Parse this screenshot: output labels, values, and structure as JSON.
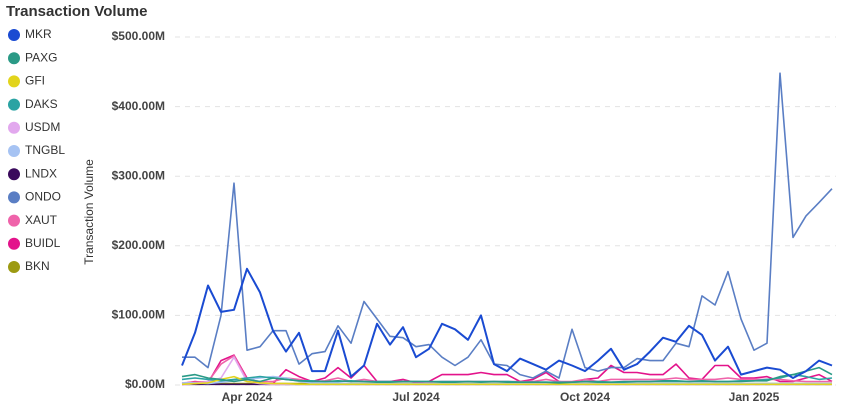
{
  "chart_data": {
    "type": "line",
    "title": "Transaction Volume",
    "y_label": "Transaction Volume",
    "categories": [
      null,
      null,
      null,
      null,
      null,
      "Apr 2024",
      null,
      null,
      null,
      null,
      null,
      null,
      null,
      null,
      null,
      null,
      null,
      null,
      "Jul 2024",
      null,
      null,
      null,
      null,
      null,
      null,
      null,
      null,
      null,
      null,
      null,
      null,
      "Oct 2024",
      null,
      null,
      null,
      null,
      null,
      null,
      null,
      null,
      null,
      null,
      null,
      null,
      "Jan 2025",
      null,
      null,
      null,
      null,
      null,
      null
    ],
    "ylim": [
      0,
      500
    ],
    "yticks": [
      {
        "value": 0,
        "label": "$0.00M"
      },
      {
        "value": 100,
        "label": "$100.00M"
      },
      {
        "value": 200,
        "label": "$200.00M"
      },
      {
        "value": 300,
        "label": "$300.00M"
      },
      {
        "value": 400,
        "label": "$400.00M"
      },
      {
        "value": 500,
        "label": "$500.00M"
      }
    ],
    "grid": true,
    "legend": "left",
    "series": [
      {
        "name": "MKR",
        "color": "#1a4bd2",
        "values": [
          28,
          75,
          143,
          105,
          108,
          167,
          133,
          78,
          48,
          75,
          20,
          20,
          78,
          12,
          28,
          88,
          58,
          83,
          40,
          52,
          88,
          80,
          65,
          100,
          30,
          20,
          38,
          30,
          22,
          35,
          28,
          20,
          35,
          52,
          22,
          30,
          48,
          68,
          62,
          85,
          72,
          35,
          55,
          15,
          20,
          25,
          22,
          10,
          20,
          35,
          28
        ]
      },
      {
        "name": "PAXG",
        "color": "#2a9a86",
        "values": [
          12,
          15,
          10,
          8,
          5,
          8,
          5,
          10,
          8,
          6,
          5,
          5,
          6,
          5,
          5,
          4,
          4,
          5,
          5,
          5,
          4,
          4,
          5,
          4,
          5,
          4,
          4,
          4,
          4,
          3,
          4,
          5,
          4,
          4,
          5,
          5,
          5,
          6,
          6,
          5,
          6,
          5,
          5,
          5,
          6,
          6,
          12,
          15,
          20,
          25,
          15
        ]
      },
      {
        "name": "GFI",
        "color": "#e2d41c",
        "values": [
          1,
          2,
          3,
          8,
          12,
          5,
          3,
          2,
          2,
          1,
          1,
          1,
          1,
          1,
          1,
          1,
          1,
          1,
          1,
          1,
          1,
          1,
          1,
          1,
          1,
          1,
          1,
          1,
          1,
          1,
          1,
          1,
          1,
          1,
          1,
          1,
          1,
          1,
          1,
          1,
          1,
          1,
          1,
          1,
          1,
          1,
          1,
          1,
          1,
          1,
          1
        ]
      },
      {
        "name": "DAKS",
        "color": "#2ba3a3",
        "values": [
          8,
          10,
          8,
          6,
          8,
          10,
          12,
          10,
          8,
          6,
          6,
          5,
          5,
          6,
          5,
          5,
          5,
          5,
          5,
          5,
          5,
          5,
          5,
          5,
          5,
          5,
          4,
          4,
          4,
          4,
          4,
          5,
          5,
          4,
          4,
          5,
          5,
          5,
          5,
          5,
          5,
          5,
          5,
          6,
          6,
          8,
          10,
          15,
          12,
          8,
          10
        ]
      },
      {
        "name": "USDM",
        "color": "#e2a8ee",
        "values": [
          0,
          2,
          5,
          10,
          40,
          5,
          2,
          1,
          1,
          1,
          1,
          1,
          1,
          1,
          1,
          1,
          1,
          1,
          1,
          1,
          1,
          1,
          1,
          1,
          1,
          1,
          1,
          1,
          1,
          1,
          1,
          1,
          1,
          1,
          1,
          1,
          1,
          1,
          1,
          1,
          1,
          1,
          1,
          1,
          1,
          1,
          1,
          1,
          1,
          1,
          1
        ]
      },
      {
        "name": "TNGBL",
        "color": "#a6c3f3",
        "values": [
          3,
          3,
          2,
          4,
          6,
          8,
          10,
          12,
          10,
          5,
          3,
          3,
          3,
          2,
          2,
          2,
          2,
          2,
          2,
          2,
          2,
          2,
          2,
          2,
          2,
          2,
          2,
          2,
          2,
          2,
          2,
          2,
          2,
          2,
          2,
          2,
          2,
          2,
          2,
          2,
          2,
          2,
          2,
          2,
          2,
          2,
          2,
          2,
          2,
          2,
          2
        ]
      },
      {
        "name": "LNDX",
        "color": "#3a0a5c",
        "values": [
          1,
          1,
          1,
          1,
          1,
          1,
          1,
          1,
          1,
          1,
          1,
          1,
          1,
          1,
          1,
          1,
          1,
          1,
          1,
          1,
          1,
          1,
          1,
          1,
          1,
          1,
          1,
          1,
          1,
          1,
          1,
          1,
          1,
          1,
          1,
          1,
          1,
          1,
          1,
          1,
          1,
          1,
          1,
          1,
          1,
          1,
          1,
          1,
          1,
          1,
          1
        ]
      },
      {
        "name": "ONDO",
        "color": "#5a7ec4",
        "values": [
          40,
          40,
          25,
          100,
          290,
          50,
          55,
          78,
          78,
          30,
          45,
          48,
          85,
          60,
          120,
          95,
          70,
          68,
          55,
          58,
          40,
          28,
          40,
          65,
          30,
          28,
          15,
          10,
          20,
          10,
          80,
          25,
          20,
          25,
          25,
          38,
          35,
          35,
          60,
          55,
          128,
          115,
          163,
          95,
          50,
          60,
          448,
          212,
          243,
          262,
          282
        ]
      },
      {
        "name": "XAUT",
        "color": "#ef63aa",
        "values": [
          3,
          4,
          5,
          30,
          42,
          8,
          5,
          5,
          10,
          8,
          5,
          6,
          10,
          5,
          8,
          5,
          5,
          5,
          5,
          4,
          5,
          5,
          5,
          5,
          5,
          5,
          5,
          5,
          8,
          5,
          5,
          8,
          5,
          8,
          8,
          8,
          8,
          8,
          10,
          8,
          8,
          8,
          10,
          8,
          8,
          8,
          8,
          6,
          5,
          5,
          5
        ]
      },
      {
        "name": "BUIDL",
        "color": "#e3138b",
        "values": [
          2,
          5,
          3,
          35,
          43,
          10,
          3,
          2,
          22,
          12,
          5,
          10,
          25,
          10,
          28,
          5,
          5,
          8,
          3,
          5,
          15,
          15,
          15,
          18,
          15,
          15,
          5,
          8,
          18,
          5,
          3,
          8,
          10,
          28,
          18,
          18,
          15,
          15,
          30,
          10,
          8,
          28,
          28,
          10,
          10,
          12,
          5,
          5,
          10,
          15,
          5
        ]
      },
      {
        "name": "BKN",
        "color": "#9c9a12",
        "values": [
          2,
          2,
          2,
          2,
          2,
          2,
          2,
          2,
          2,
          2,
          2,
          2,
          2,
          2,
          2,
          2,
          2,
          2,
          2,
          2,
          2,
          2,
          2,
          2,
          2,
          2,
          2,
          2,
          2,
          2,
          2,
          2,
          2,
          2,
          2,
          2,
          2,
          2,
          2,
          2,
          2,
          2,
          2,
          2,
          2,
          2,
          2,
          2,
          2,
          2,
          2
        ]
      }
    ]
  }
}
